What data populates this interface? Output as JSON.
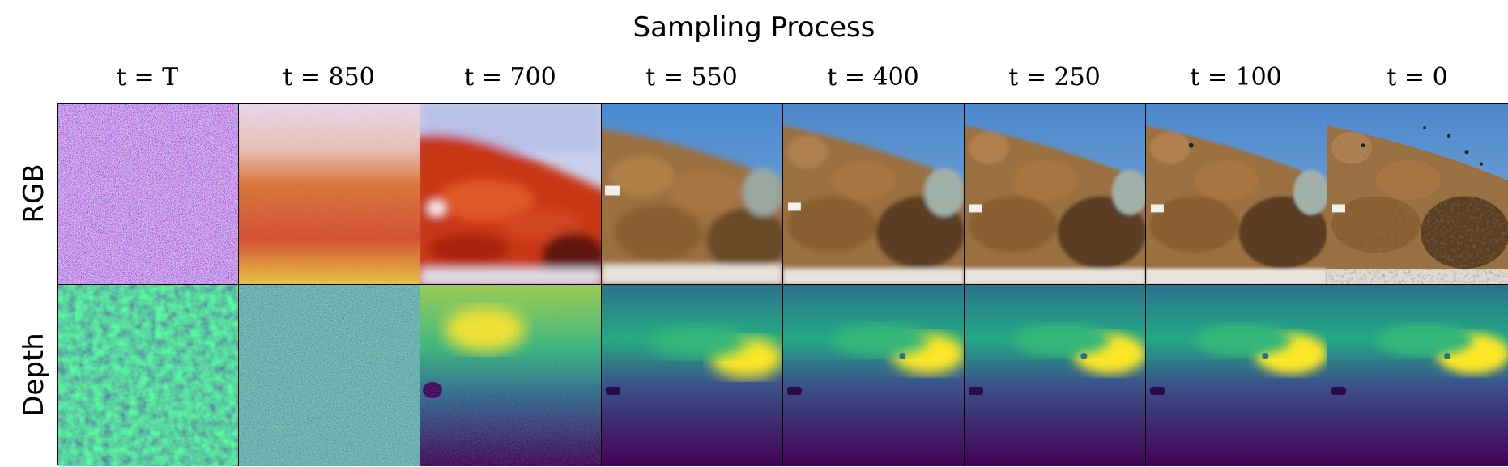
{
  "title": "Sampling Process",
  "rows": [
    "RGB",
    "Depth"
  ],
  "columns": [
    {
      "label": "t = T"
    },
    {
      "label": "t = 850"
    },
    {
      "label": "t = 700"
    },
    {
      "label": "t = 550"
    },
    {
      "label": "t = 400"
    },
    {
      "label": "t = 250"
    },
    {
      "label": "t = 100"
    },
    {
      "label": "t = 0"
    }
  ],
  "colors": {
    "sky": "#4a8ad0",
    "reef": "#a0703a",
    "depth_low": "#440154",
    "depth_mid": "#21908c",
    "depth_high": "#fde725",
    "noise_orange": "#e06010"
  }
}
